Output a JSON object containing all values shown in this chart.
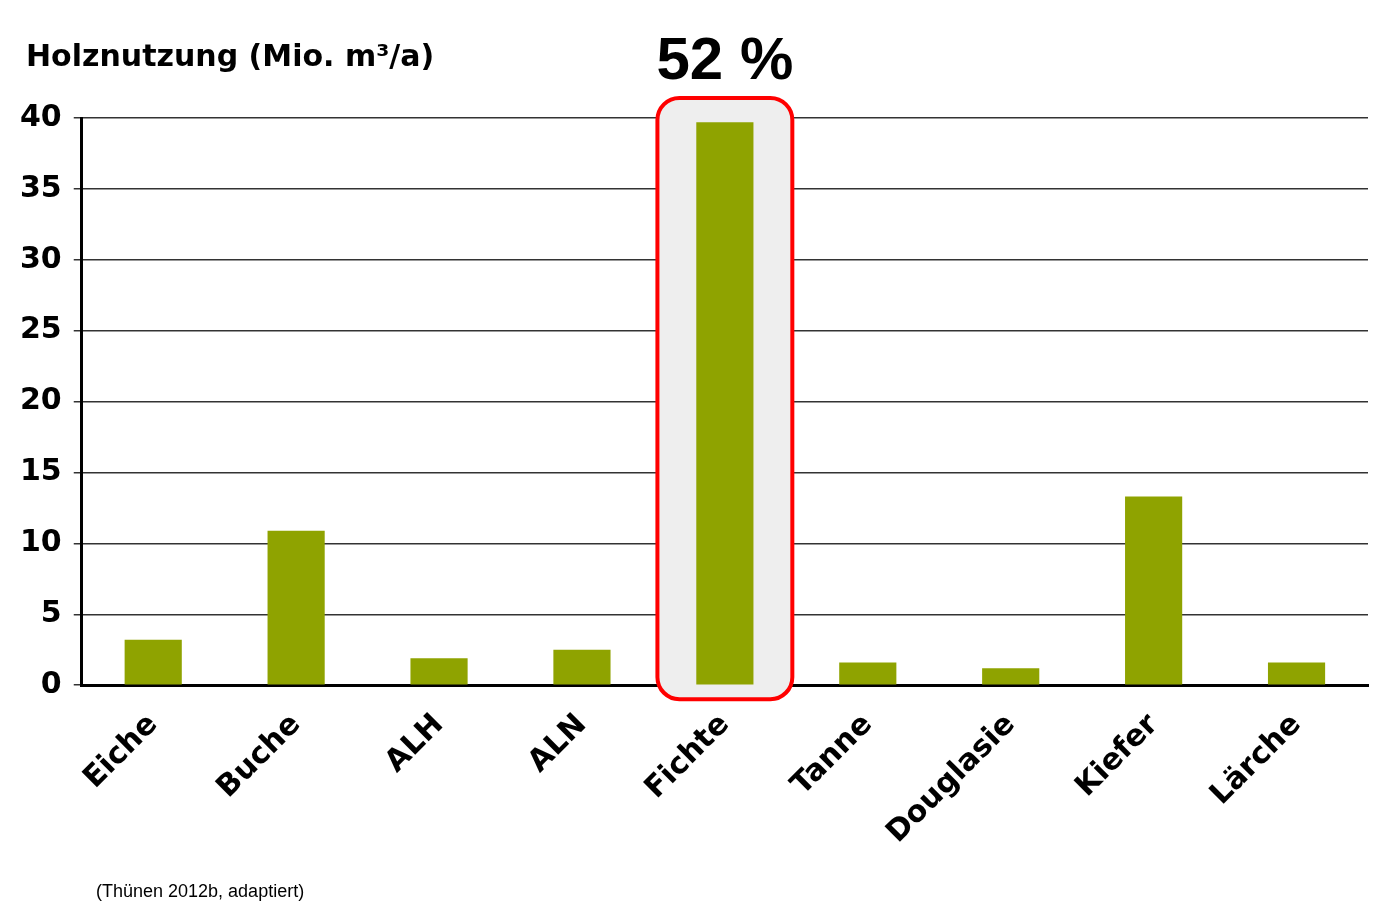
{
  "chart_data": {
    "type": "bar",
    "ylabel": "Holznutzung (Mio. m³/a)",
    "categories": [
      "Eiche",
      "Buche",
      "ALH",
      "ALN",
      "Fichte",
      "Tanne",
      "Douglasie",
      "Kiefer",
      "Lärche"
    ],
    "values": [
      3.2,
      10.9,
      1.9,
      2.5,
      39.7,
      1.6,
      1.2,
      13.3,
      1.6
    ],
    "color": "#8fa300",
    "ylim": [
      0,
      40
    ],
    "yticks": [
      0,
      5,
      10,
      15,
      20,
      25,
      30,
      35,
      40
    ],
    "grid": "y",
    "bands": [
      {
        "axis": "x",
        "from": "Fichte",
        "to": "Fichte",
        "color": "#eeeeee"
      }
    ],
    "annotations": [
      "52 %",
      "(Thünen 2012b, adaptiert)"
    ]
  }
}
